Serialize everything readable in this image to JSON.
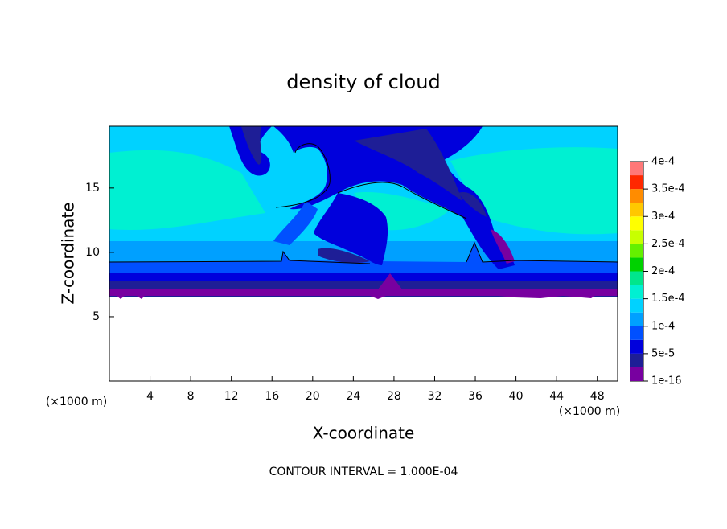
{
  "chart_data": {
    "type": "contour",
    "title": "density of cloud",
    "x_label": "X-coordinate",
    "y_label": "Z-coordinate",
    "x_unit": "(×1000 m)",
    "footnote": "CONTOUR INTERVAL = 1.000E-04",
    "xlim": [
      0,
      50
    ],
    "xticks": [
      4,
      8,
      12,
      16,
      20,
      24,
      28,
      32,
      36,
      40,
      44,
      48
    ],
    "ylim": [
      0,
      19.8
    ],
    "yticks": [
      5,
      10,
      15
    ],
    "colorbar": {
      "ticks": [
        {
          "value": 1e-16,
          "label": "1e-16"
        },
        {
          "value": 5e-05,
          "label": "5e-5"
        },
        {
          "value": 0.0001,
          "label": "1e-4"
        },
        {
          "value": 0.00015,
          "label": "1.5e-4"
        },
        {
          "value": 0.0002,
          "label": "2e-4"
        },
        {
          "value": 0.00025,
          "label": "2.5e-4"
        },
        {
          "value": 0.0003,
          "label": "3e-4"
        },
        {
          "value": 0.00035,
          "label": "3.5e-4"
        },
        {
          "value": 0.0004,
          "label": "4e-4"
        }
      ],
      "colors": [
        "#7800a0",
        "#1e1e96",
        "#0000dc",
        "#0050ff",
        "#00a0ff",
        "#00d2ff",
        "#00f0d2",
        "#00e68c",
        "#00d200",
        "#64f000",
        "#c8ff00",
        "#ffff00",
        "#ffc800",
        "#ff8c00",
        "#ff2800",
        "#ff7878"
      ]
    }
  }
}
